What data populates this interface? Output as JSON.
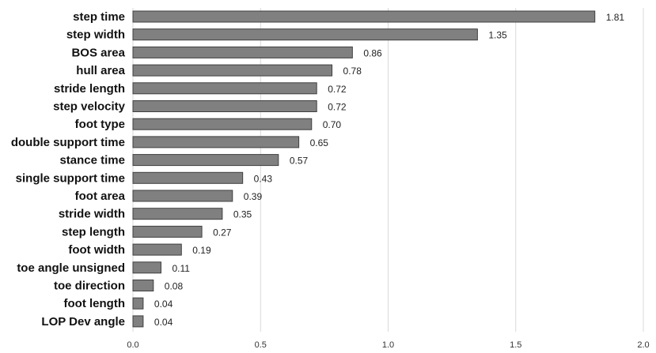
{
  "chart_data": {
    "type": "bar",
    "orientation": "horizontal",
    "categories": [
      "step time",
      "step width",
      "BOS area",
      "hull area",
      "stride length",
      "step velocity",
      "foot type",
      "double support time",
      "stance time",
      "single support time",
      "foot area",
      "stride width",
      "step length",
      "foot width",
      "toe angle unsigned",
      "toe direction",
      "foot length",
      "LOP Dev angle"
    ],
    "values": [
      1.81,
      1.35,
      0.86,
      0.78,
      0.72,
      0.72,
      0.7,
      0.65,
      0.57,
      0.43,
      0.39,
      0.35,
      0.27,
      0.19,
      0.11,
      0.08,
      0.04,
      0.04
    ],
    "value_labels": [
      "1.81",
      "1.35",
      "0.86",
      "0.78",
      "0.72",
      "0.72",
      "0.70",
      "0.65",
      "0.57",
      "0.43",
      "0.39",
      "0.35",
      "0.27",
      "0.19",
      "0.11",
      "0.08",
      "0.04",
      "0.04"
    ],
    "x_ticks": [
      "0.0",
      "0.5",
      "1.0",
      "1.5",
      "2.0"
    ],
    "xlim": [
      0,
      2
    ],
    "grid": true,
    "bar_color": "#808080"
  }
}
